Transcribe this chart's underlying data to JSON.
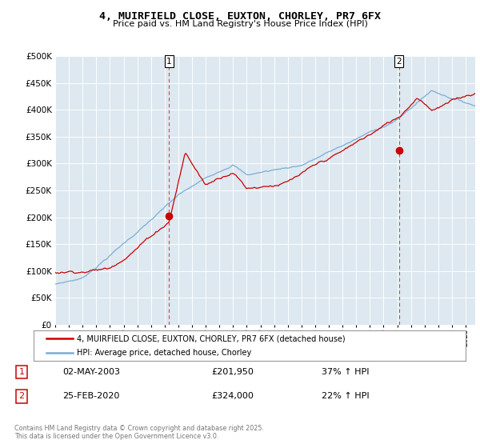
{
  "title": "4, MUIRFIELD CLOSE, EUXTON, CHORLEY, PR7 6FX",
  "subtitle": "Price paid vs. HM Land Registry's House Price Index (HPI)",
  "legend_label_red": "4, MUIRFIELD CLOSE, EUXTON, CHORLEY, PR7 6FX (detached house)",
  "legend_label_blue": "HPI: Average price, detached house, Chorley",
  "sale1_date": "02-MAY-2003",
  "sale1_price": "£201,950",
  "sale1_hpi": "37% ↑ HPI",
  "sale2_date": "25-FEB-2020",
  "sale2_price": "£324,000",
  "sale2_hpi": "22% ↑ HPI",
  "footer": "Contains HM Land Registry data © Crown copyright and database right 2025.\nThis data is licensed under the Open Government Licence v3.0.",
  "red_color": "#cc0000",
  "blue_color": "#7aaed6",
  "vline_color": "#dd4444",
  "dot_color": "#cc0000",
  "background_color": "#dde8f0",
  "ylim": [
    0,
    500000
  ],
  "yticks": [
    0,
    50000,
    100000,
    150000,
    200000,
    250000,
    300000,
    350000,
    400000,
    450000,
    500000
  ],
  "xlim_start": 1995.0,
  "xlim_end": 2025.7,
  "sale1_x": 2003.33,
  "sale1_y": 201950,
  "sale2_x": 2020.12,
  "sale2_y": 324000
}
